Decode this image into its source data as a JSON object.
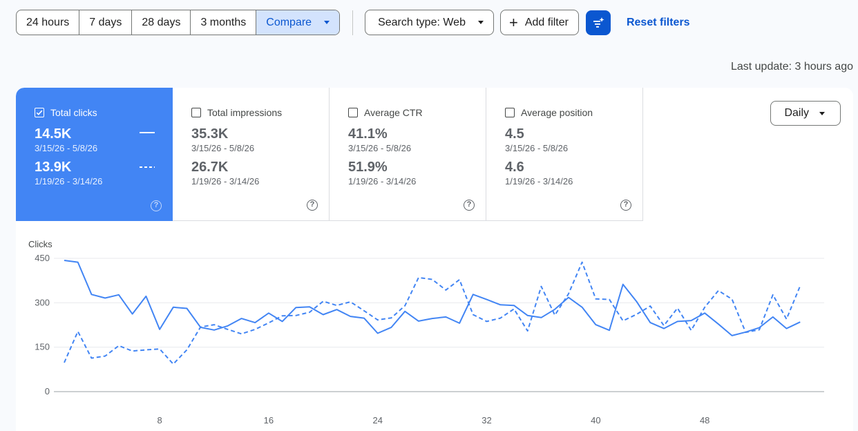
{
  "toolbar": {
    "ranges": [
      "24 hours",
      "7 days",
      "28 days",
      "3 months"
    ],
    "compare_label": "Compare",
    "search_type_label": "Search type: Web",
    "add_filter_label": "Add filter",
    "reset_label": "Reset filters"
  },
  "last_update": "Last update: 3 hours ago",
  "metrics": [
    {
      "label": "Total clicks",
      "current": "14.5K",
      "current_range": "3/15/26 - 5/8/26",
      "previous": "13.9K",
      "previous_range": "1/19/26 - 3/14/26",
      "checked": true
    },
    {
      "label": "Total impressions",
      "current": "35.3K",
      "current_range": "3/15/26 - 5/8/26",
      "previous": "26.7K",
      "previous_range": "1/19/26 - 3/14/26",
      "checked": false
    },
    {
      "label": "Average CTR",
      "current": "41.1%",
      "current_range": "3/15/26 - 5/8/26",
      "previous": "51.9%",
      "previous_range": "1/19/26 - 3/14/26",
      "checked": false
    },
    {
      "label": "Average position",
      "current": "4.5",
      "current_range": "3/15/26 - 5/8/26",
      "previous": "4.6",
      "previous_range": "1/19/26 - 3/14/26",
      "checked": false
    }
  ],
  "help_glyph": "?",
  "granularity": "Daily",
  "colors": {
    "accent": "#4285f4",
    "primary": "#0b57d0",
    "selected_bg": "#d3e3fd"
  },
  "chart_data": {
    "type": "line",
    "ylabel": "Clicks",
    "ylim": [
      0,
      450
    ],
    "yticks": [
      0,
      150,
      300,
      450
    ],
    "xticks": [
      8,
      16,
      24,
      32,
      40,
      48
    ],
    "xlim": [
      1,
      56
    ],
    "grid": true,
    "series": [
      {
        "style": "solid",
        "values": [
          443,
          437,
          328,
          316,
          327,
          262,
          322,
          210,
          285,
          281,
          217,
          208,
          222,
          247,
          233,
          265,
          237,
          284,
          286,
          260,
          277,
          254,
          248,
          197,
          217,
          271,
          238,
          247,
          252,
          231,
          328,
          311,
          293,
          291,
          257,
          250,
          278,
          318,
          285,
          226,
          207,
          362,
          304,
          233,
          213,
          237,
          240,
          265,
          228,
          189,
          201,
          216,
          252,
          213,
          235
        ]
      },
      {
        "style": "dashed",
        "values": [
          98,
          203,
          113,
          120,
          155,
          137,
          141,
          144,
          93,
          141,
          218,
          226,
          210,
          195,
          210,
          232,
          256,
          257,
          268,
          305,
          291,
          303,
          273,
          242,
          249,
          290,
          385,
          379,
          343,
          378,
          260,
          237,
          248,
          279,
          205,
          355,
          258,
          330,
          437,
          313,
          311,
          239,
          261,
          289,
          223,
          282,
          207,
          285,
          341,
          312,
          200,
          209,
          327,
          245,
          357
        ]
      }
    ]
  }
}
